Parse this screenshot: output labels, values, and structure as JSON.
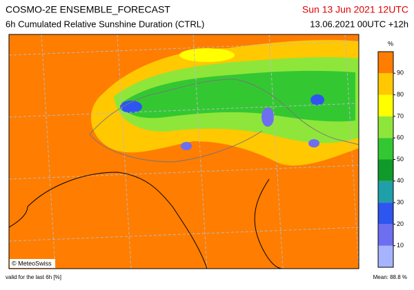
{
  "header": {
    "title": "COSMO-2E ENSEMBLE_FORECAST",
    "subtitle": "6h Cumulated Relative Sunshine Duration (CTRL)",
    "valid_date": "Sun 13 Jun 2021 12UTC",
    "run": "13.06.2021 00UTC +12h"
  },
  "colorbar": {
    "unit": "%",
    "lim": [
      0,
      100
    ],
    "ticks": [
      10,
      20,
      30,
      40,
      50,
      60,
      70,
      80,
      90
    ],
    "colors": [
      "#a6b4ff",
      "#6e6ef0",
      "#2f55f0",
      "#1fa0a8",
      "#109a2a",
      "#33c832",
      "#8ee63a",
      "#ffff00",
      "#ffc800",
      "#ff7d00"
    ]
  },
  "map": {
    "credit": "© MeteoSwiss"
  },
  "footer": {
    "note": "valid for the last 6h [%]",
    "mean": "Mean:  88.8 %"
  }
}
